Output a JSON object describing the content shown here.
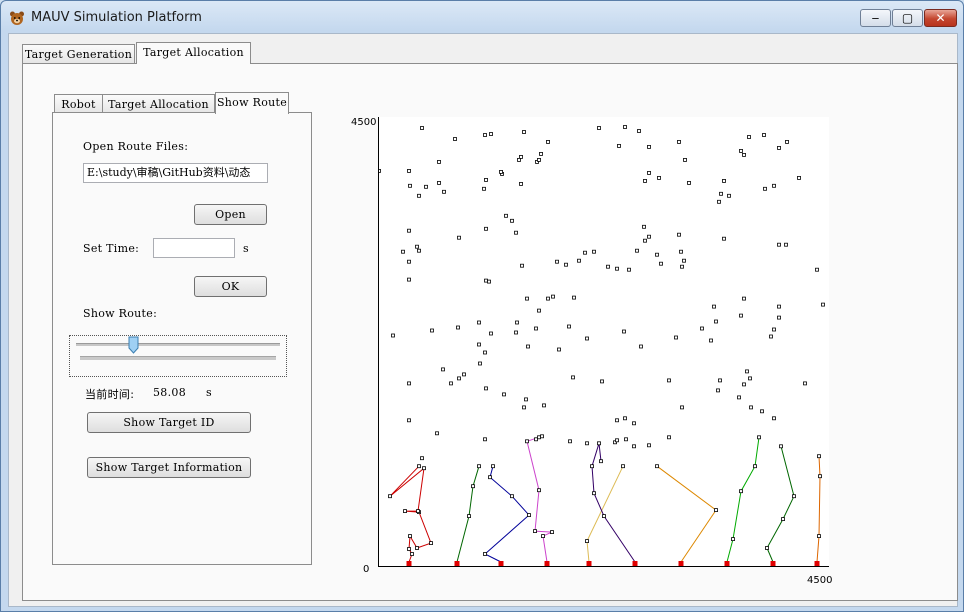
{
  "window": {
    "title": "MAUV Simulation Platform",
    "minimize_glyph": "‒",
    "maximize_glyph": "▢",
    "close_glyph": "✕"
  },
  "main_tabs": [
    "Target Generation",
    "Target Allocation"
  ],
  "sub_tabs": [
    "Robot",
    "Target Allocation",
    "Show Route"
  ],
  "panel": {
    "open_route_label": "Open Route Files:",
    "file_path": "E:\\study\\审稿\\GitHub资料\\动态",
    "open_button": "Open",
    "set_time_label": "Set Time:",
    "time_value": "",
    "time_unit": "s",
    "ok_button": "OK",
    "show_route_label": "Show Route:",
    "slider_fraction": 0.28,
    "current_time_label": "当前时间:",
    "current_time_value": "58.08",
    "current_time_unit": "s",
    "show_target_id_button": "Show Target ID",
    "show_target_info_button": "Show Target Information"
  },
  "chart_data": {
    "type": "scatter",
    "title": "",
    "xlabel": "",
    "ylabel": "",
    "xlim": [
      0,
      4500
    ],
    "ylim": [
      0,
      4500
    ],
    "tick_labels": {
      "y_top": "4500",
      "origin": "0",
      "x_right": "4500"
    },
    "grid": false,
    "targets": [
      [
        430,
        4390
      ],
      [
        760,
        4280
      ],
      [
        1060,
        4320
      ],
      [
        1120,
        4330
      ],
      [
        1450,
        4350
      ],
      [
        1690,
        4250
      ],
      [
        2200,
        4390
      ],
      [
        2460,
        4400
      ],
      [
        2600,
        4360
      ],
      [
        3000,
        4250
      ],
      [
        3700,
        4300
      ],
      [
        3850,
        4320
      ],
      [
        4080,
        4250
      ],
      [
        1420,
        4100
      ],
      [
        1620,
        4130
      ],
      [
        1400,
        4070
      ],
      [
        1580,
        4050
      ],
      [
        2400,
        4210
      ],
      [
        2700,
        4200
      ],
      [
        3620,
        4160
      ],
      [
        4000,
        4190
      ],
      [
        3650,
        4120
      ],
      [
        0,
        3960
      ],
      [
        300,
        3960
      ],
      [
        600,
        4050
      ],
      [
        1230,
        3930
      ],
      [
        1420,
        3830
      ],
      [
        1600,
        4070
      ],
      [
        1070,
        3870
      ],
      [
        1220,
        3950
      ],
      [
        2700,
        3940
      ],
      [
        2660,
        3860
      ],
      [
        2800,
        3890
      ],
      [
        3060,
        4070
      ],
      [
        3100,
        3840
      ],
      [
        3450,
        3860
      ],
      [
        4200,
        3890
      ],
      [
        600,
        3840
      ],
      [
        650,
        3750
      ],
      [
        470,
        3800
      ],
      [
        400,
        3710
      ],
      [
        310,
        3810
      ],
      [
        1050,
        3780
      ],
      [
        3420,
        3730
      ],
      [
        3500,
        3710
      ],
      [
        3400,
        3650
      ],
      [
        3860,
        3780
      ],
      [
        3950,
        3810
      ],
      [
        300,
        3360
      ],
      [
        240,
        3150
      ],
      [
        380,
        3200
      ],
      [
        400,
        3160
      ],
      [
        300,
        3050
      ],
      [
        300,
        2870
      ],
      [
        800,
        3290
      ],
      [
        1070,
        3380
      ],
      [
        1270,
        3510
      ],
      [
        1330,
        3460
      ],
      [
        1370,
        3340
      ],
      [
        2650,
        3400
      ],
      [
        2700,
        3300
      ],
      [
        2660,
        3260
      ],
      [
        3000,
        3320
      ],
      [
        3020,
        3150
      ],
      [
        3450,
        3280
      ],
      [
        4000,
        3220
      ],
      [
        4070,
        3220
      ],
      [
        2150,
        3150
      ],
      [
        2580,
        3160
      ],
      [
        2780,
        3120
      ],
      [
        2820,
        3030
      ],
      [
        2380,
        2980
      ],
      [
        2060,
        3140
      ],
      [
        3050,
        3060
      ],
      [
        3030,
        3000
      ],
      [
        4380,
        2970
      ],
      [
        1430,
        3010
      ],
      [
        1780,
        3050
      ],
      [
        1870,
        3020
      ],
      [
        1070,
        2860
      ],
      [
        1100,
        2850
      ],
      [
        2000,
        3060
      ],
      [
        2500,
        2970
      ],
      [
        2290,
        3000
      ],
      [
        1480,
        2680
      ],
      [
        1600,
        2560
      ],
      [
        1690,
        2680
      ],
      [
        1740,
        2700
      ],
      [
        1950,
        2690
      ],
      [
        3350,
        2600
      ],
      [
        3650,
        2680
      ],
      [
        4000,
        2600
      ],
      [
        4000,
        2490
      ],
      [
        4440,
        2620
      ],
      [
        790,
        2390
      ],
      [
        530,
        2360
      ],
      [
        1000,
        2440
      ],
      [
        1120,
        2330
      ],
      [
        1370,
        2340
      ],
      [
        1570,
        2380
      ],
      [
        1900,
        2400
      ],
      [
        2450,
        2350
      ],
      [
        2620,
        2200
      ],
      [
        2970,
        2290
      ],
      [
        3230,
        2380
      ],
      [
        3320,
        2260
      ],
      [
        3370,
        2450
      ],
      [
        3620,
        2510
      ],
      [
        3950,
        2370
      ],
      [
        3920,
        2300
      ],
      [
        2080,
        2280
      ],
      [
        1490,
        2200
      ],
      [
        1800,
        2170
      ],
      [
        1000,
        2220
      ],
      [
        1060,
        2140
      ],
      [
        140,
        2310
      ],
      [
        1380,
        2440
      ],
      [
        640,
        1970
      ],
      [
        720,
        1830
      ],
      [
        800,
        1880
      ],
      [
        850,
        1920
      ],
      [
        1070,
        1780
      ],
      [
        1250,
        1720
      ],
      [
        1010,
        2030
      ],
      [
        1470,
        1670
      ],
      [
        1450,
        1590
      ],
      [
        1650,
        1610
      ],
      [
        1940,
        1890
      ],
      [
        2230,
        1850
      ],
      [
        2900,
        1860
      ],
      [
        3390,
        1760
      ],
      [
        3410,
        1860
      ],
      [
        3710,
        1880
      ],
      [
        3650,
        1820
      ],
      [
        3680,
        1950
      ],
      [
        4260,
        1830
      ],
      [
        300,
        1830
      ],
      [
        300,
        1460
      ],
      [
        2380,
        1460
      ],
      [
        2460,
        1480
      ],
      [
        2550,
        1430
      ],
      [
        3600,
        1690
      ],
      [
        3030,
        1590
      ],
      [
        3720,
        1590
      ],
      [
        3950,
        1480
      ],
      [
        580,
        1330
      ],
      [
        430,
        1080
      ],
      [
        1060,
        1270
      ],
      [
        1570,
        1270
      ],
      [
        1600,
        1290
      ],
      [
        1910,
        1250
      ],
      [
        2080,
        1230
      ],
      [
        2360,
        1240
      ],
      [
        2380,
        1260
      ],
      [
        2470,
        1270
      ],
      [
        2550,
        1200
      ],
      [
        2700,
        1210
      ],
      [
        2900,
        1290
      ],
      [
        3830,
        1550
      ]
    ],
    "routes": [
      {
        "color": "#cc0000",
        "points": [
          [
            300,
            40
          ],
          [
            330,
            120
          ],
          [
            300,
            170
          ],
          [
            310,
            300
          ],
          [
            380,
            180
          ],
          [
            520,
            230
          ],
          [
            400,
            540
          ],
          [
            260,
            550
          ],
          [
            390,
            550
          ],
          [
            450,
            980
          ],
          [
            110,
            700
          ],
          [
            400,
            1000
          ]
        ]
      },
      {
        "color": "#006600",
        "points": [
          [
            780,
            40
          ],
          [
            900,
            500
          ],
          [
            940,
            800
          ],
          [
            1000,
            1000
          ]
        ]
      },
      {
        "color": "#000099",
        "points": [
          [
            1220,
            40
          ],
          [
            1060,
            120
          ],
          [
            1500,
            510
          ],
          [
            1330,
            700
          ],
          [
            1110,
            890
          ],
          [
            1140,
            1000
          ]
        ]
      },
      {
        "color": "#cc44cc",
        "points": [
          [
            1680,
            40
          ],
          [
            1640,
            300
          ],
          [
            1730,
            340
          ],
          [
            1560,
            350
          ],
          [
            1600,
            760
          ],
          [
            1480,
            1250
          ],
          [
            1630,
            1300
          ]
        ]
      },
      {
        "color": "#ddbb55",
        "points": [
          [
            2100,
            40
          ],
          [
            2080,
            250
          ],
          [
            2440,
            1000
          ]
        ]
      },
      {
        "color": "#330066",
        "points": [
          [
            2560,
            40
          ],
          [
            2250,
            500
          ],
          [
            2150,
            730
          ],
          [
            2130,
            1000
          ],
          [
            2200,
            1230
          ],
          [
            2220,
            1050
          ]
        ]
      },
      {
        "color": "#dd8800",
        "points": [
          [
            3020,
            40
          ],
          [
            3370,
            560
          ],
          [
            2780,
            1000
          ]
        ]
      },
      {
        "color": "#00aa00",
        "points": [
          [
            3480,
            40
          ],
          [
            3540,
            270
          ],
          [
            3620,
            750
          ],
          [
            3760,
            1000
          ],
          [
            3800,
            1290
          ]
        ]
      },
      {
        "color": "#006600",
        "points": [
          [
            3940,
            40
          ],
          [
            3880,
            180
          ],
          [
            4040,
            470
          ],
          [
            4150,
            700
          ],
          [
            4020,
            1200
          ]
        ]
      },
      {
        "color": "#dd6600",
        "points": [
          [
            4380,
            40
          ],
          [
            4400,
            300
          ],
          [
            4410,
            900
          ],
          [
            4400,
            1100
          ]
        ]
      }
    ],
    "depots_x": [
      300,
      780,
      1220,
      1680,
      2100,
      2560,
      3020,
      3480,
      3940,
      4380
    ]
  }
}
